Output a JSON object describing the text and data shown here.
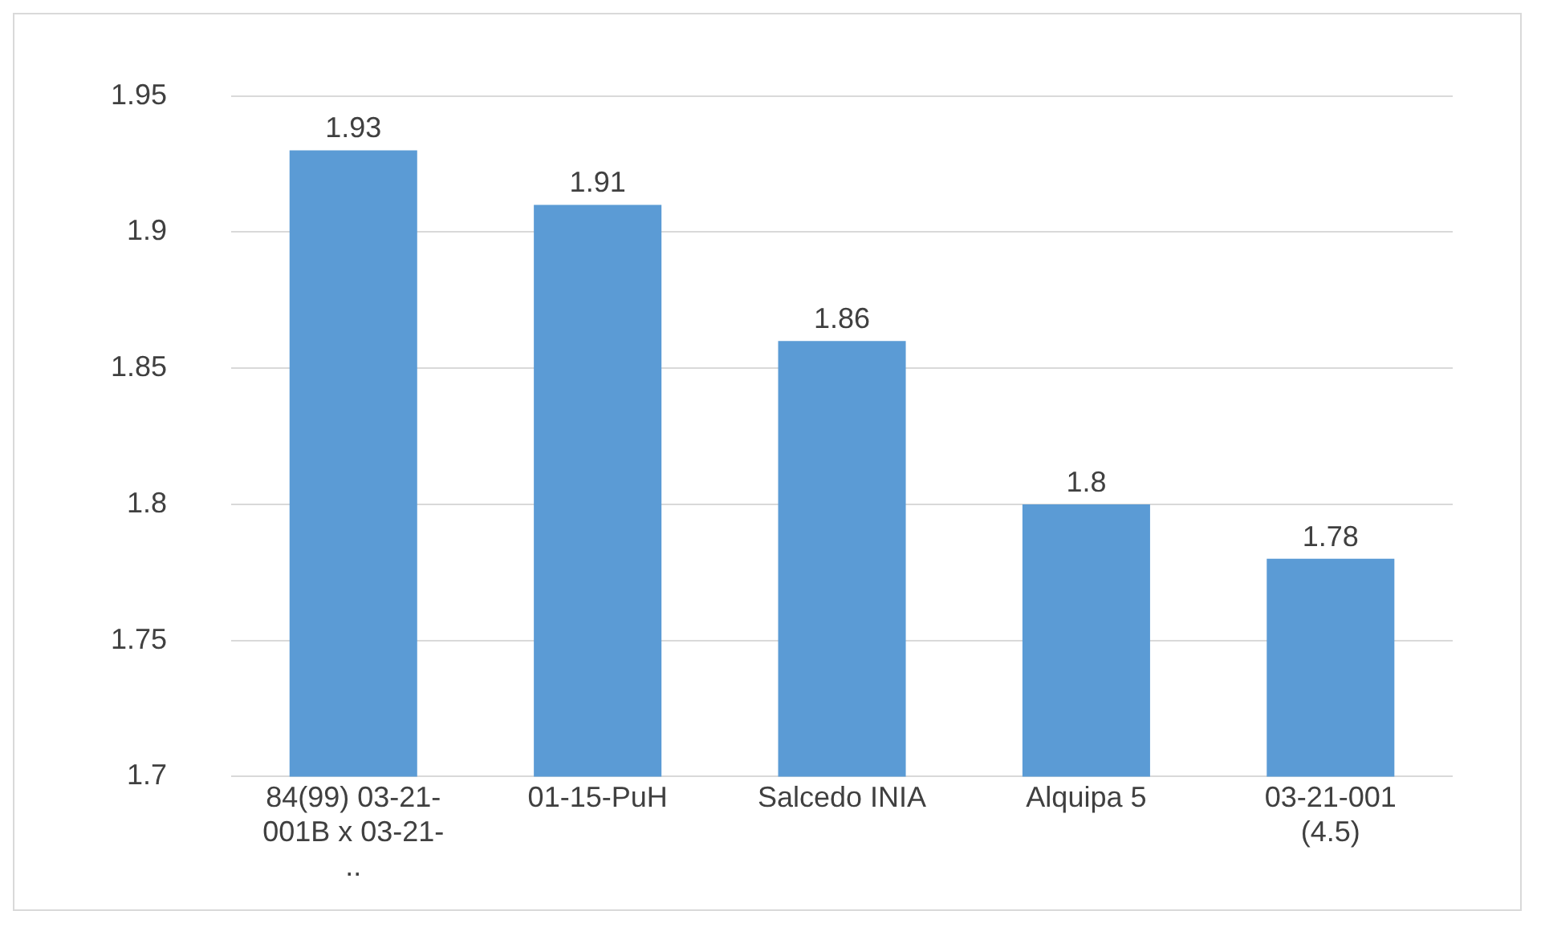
{
  "chart_data": {
    "type": "bar",
    "categories": [
      "84(99) 03-21-001B x 03-21-..",
      "01-15-PuH",
      "Salcedo INIA",
      "Alquipa 5",
      "03-21-001 (4.5)"
    ],
    "values": [
      1.93,
      1.91,
      1.86,
      1.8,
      1.78
    ],
    "color": "#5b9bd5",
    "ylim": [
      1.7,
      1.95
    ],
    "yticks": [
      1.7,
      1.75,
      1.8,
      1.85,
      1.9,
      1.95
    ],
    "grid": "y",
    "data_labels": true,
    "legend": false
  }
}
